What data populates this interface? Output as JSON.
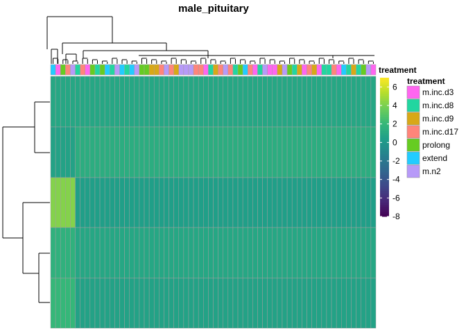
{
  "chart_data": {
    "type": "heatmap",
    "title": "male_pituitary",
    "annotation_label": "treatment",
    "n_columns": 66,
    "n_rows": 5,
    "column_treatments": [
      "extend",
      "m.inc.d3",
      "prolong",
      "m.inc.d17",
      "m.n2",
      "m.inc.d8",
      "m.inc.d17",
      "m.inc.d3",
      "prolong",
      "m.inc.d8",
      "prolong",
      "extend",
      "m.inc.d8",
      "m.n2",
      "extend",
      "m.inc.d8",
      "extend",
      "m.n2",
      "prolong",
      "prolong",
      "m.inc.d9",
      "m.inc.d9",
      "m.inc.d17",
      "m.n2",
      "m.inc.d17",
      "m.inc.d9",
      "m.n2",
      "m.n2",
      "m.n2",
      "m.inc.d17",
      "m.inc.d17",
      "m.inc.d3",
      "m.inc.d8",
      "m.inc.d9",
      "m.inc.d17",
      "m.n2",
      "m.inc.d17",
      "m.inc.d8",
      "prolong",
      "extend",
      "m.inc.d17",
      "m.inc.d3",
      "m.inc.d8",
      "m.n2",
      "m.inc.d3",
      "m.inc.d3",
      "m.inc.d9",
      "m.n2",
      "prolong",
      "m.inc.d8",
      "m.inc.d9",
      "m.inc.d3",
      "m.inc.d17",
      "m.inc.d9",
      "m.inc.d3",
      "m.inc.d8",
      "m.inc.d8",
      "m.inc.d17",
      "m.inc.d3",
      "extend",
      "m.inc.d8",
      "m.inc.d9",
      "m.inc.d8",
      "prolong",
      "m.n2",
      "m.inc.d3"
    ],
    "row_values": [
      {
        "base": 0.9,
        "high_cols": []
      },
      {
        "base": 0.6,
        "high_cols": [
          5,
          6,
          7,
          8,
          9,
          10,
          11,
          12,
          13,
          14,
          15,
          16,
          17,
          18,
          19,
          20,
          21,
          22,
          23,
          24,
          25,
          26,
          27,
          28,
          29,
          30,
          31,
          32,
          33,
          34,
          35,
          36,
          37,
          38,
          39,
          40,
          41,
          42,
          43,
          44,
          45,
          46,
          47,
          48,
          49,
          50,
          51,
          52,
          53,
          54,
          55,
          56,
          57,
          58,
          59,
          60,
          61,
          62,
          63,
          64,
          65
        ],
        "high_value": 1.3
      },
      {
        "base": 0.4,
        "high_cols": [
          0,
          1,
          2,
          3,
          4
        ],
        "high_value": 4.2
      },
      {
        "base": 0.9,
        "high_cols": [
          0,
          1,
          2,
          3,
          4
        ],
        "high_value": 1.6
      },
      {
        "base": 0.6,
        "high_cols": [
          0,
          1,
          2,
          3,
          4
        ],
        "high_value": 2.0
      }
    ],
    "color_scale": {
      "min": -8,
      "max": 7,
      "ticks": [
        6,
        4,
        2,
        0,
        -2,
        -4,
        -6,
        -8
      ],
      "colormap": "viridis"
    },
    "legend": {
      "title": "treatment",
      "placement": "right",
      "items": [
        {
          "label": "m.inc.d3",
          "color": "#FF66F0"
        },
        {
          "label": "m.inc.d8",
          "color": "#22D6A0"
        },
        {
          "label": "m.inc.d9",
          "color": "#D8A817"
        },
        {
          "label": "m.inc.d17",
          "color": "#FF857A"
        },
        {
          "label": "prolong",
          "color": "#66CC22"
        },
        {
          "label": "extend",
          "color": "#22CCFF"
        },
        {
          "label": "m.n2",
          "color": "#B79AF8"
        }
      ]
    },
    "dendrogram_rows": true,
    "dendrogram_columns": true,
    "grid_color": "#A0A0A0"
  }
}
